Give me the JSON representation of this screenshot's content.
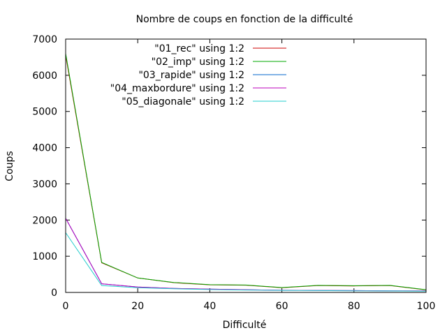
{
  "chart_data": {
    "type": "line",
    "title": "Nombre de coups en fonction de la difficulté",
    "xlabel": "Difficulté",
    "ylabel": "Coups",
    "xlim": [
      0,
      100
    ],
    "ylim": [
      0,
      7000
    ],
    "x_ticks": [
      0,
      20,
      40,
      60,
      80,
      100
    ],
    "y_ticks": [
      0,
      1000,
      2000,
      3000,
      4000,
      5000,
      6000,
      7000
    ],
    "grid": false,
    "legend_position": "top-right",
    "x": [
      0,
      10,
      20,
      30,
      40,
      50,
      60,
      70,
      80,
      90,
      100
    ],
    "series": [
      {
        "name": "\"01_rec\" using 1:2",
        "color": "#cc0000",
        "values": [
          6550,
          820,
          400,
          270,
          210,
          200,
          130,
          190,
          180,
          190,
          70
        ]
      },
      {
        "name": "\"02_imp\" using 1:2",
        "color": "#00aa00",
        "values": [
          6600,
          830,
          400,
          275,
          215,
          205,
          135,
          195,
          185,
          195,
          75
        ]
      },
      {
        "name": "\"03_rapide\" using 1:2",
        "color": "#0066cc",
        "values": [
          2050,
          240,
          150,
          110,
          90,
          75,
          60,
          55,
          50,
          45,
          40
        ]
      },
      {
        "name": "\"04_maxbordure\" using 1:2",
        "color": "#bb00bb",
        "values": [
          2050,
          240,
          150,
          110,
          90,
          75,
          60,
          55,
          50,
          45,
          40
        ]
      },
      {
        "name": "\"05_diagonale\" using 1:2",
        "color": "#22cccc",
        "values": [
          1650,
          190,
          130,
          100,
          80,
          65,
          55,
          50,
          45,
          40,
          35
        ]
      }
    ]
  }
}
